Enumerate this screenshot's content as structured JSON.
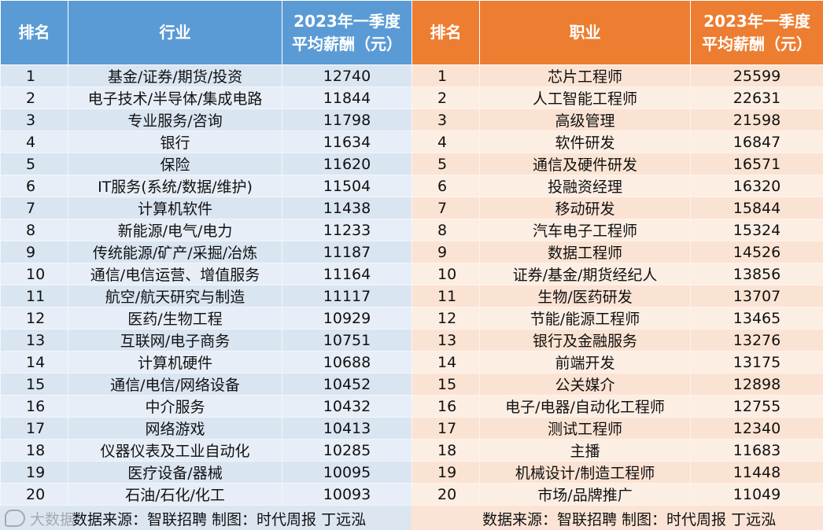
{
  "industry_table": {
    "headers": {
      "rank": "排名",
      "name": "行业",
      "salary_line1": "2023年一季度",
      "salary_line2": "平均薪酬（元）"
    },
    "rows": [
      {
        "rank": "1",
        "name": "基金/证券/期货/投资",
        "salary": "12740"
      },
      {
        "rank": "2",
        "name": "电子技术/半导体/集成电路",
        "salary": "11844"
      },
      {
        "rank": "3",
        "name": "专业服务/咨询",
        "salary": "11798"
      },
      {
        "rank": "4",
        "name": "银行",
        "salary": "11634"
      },
      {
        "rank": "5",
        "name": "保险",
        "salary": "11620"
      },
      {
        "rank": "6",
        "name": "IT服务(系统/数据/维护)",
        "salary": "11504"
      },
      {
        "rank": "7",
        "name": "计算机软件",
        "salary": "11438"
      },
      {
        "rank": "8",
        "name": "新能源/电气/电力",
        "salary": "11233"
      },
      {
        "rank": "9",
        "name": "传统能源/矿产/采掘/冶炼",
        "salary": "11187"
      },
      {
        "rank": "10",
        "name": "通信/电信运营、增值服务",
        "salary": "11164"
      },
      {
        "rank": "11",
        "name": "航空/航天研究与制造",
        "salary": "11117"
      },
      {
        "rank": "12",
        "name": "医药/生物工程",
        "salary": "10929"
      },
      {
        "rank": "13",
        "name": "互联网/电子商务",
        "salary": "10751"
      },
      {
        "rank": "14",
        "name": "计算机硬件",
        "salary": "10688"
      },
      {
        "rank": "15",
        "name": "通信/电信/网络设备",
        "salary": "10452"
      },
      {
        "rank": "16",
        "name": "中介服务",
        "salary": "10432"
      },
      {
        "rank": "17",
        "name": "网络游戏",
        "salary": "10413"
      },
      {
        "rank": "18",
        "name": "仪器仪表及工业自动化",
        "salary": "10285"
      },
      {
        "rank": "19",
        "name": "医疗设备/器械",
        "salary": "10095"
      },
      {
        "rank": "20",
        "name": "石油/石化/化工",
        "salary": "10093"
      }
    ],
    "footer": "数据来源：智联招聘 制图：时代周报 丁远泓"
  },
  "occupation_table": {
    "headers": {
      "rank": "排名",
      "name": "职业",
      "salary_line1": "2023年一季度",
      "salary_line2": "平均薪酬（元）"
    },
    "rows": [
      {
        "rank": "1",
        "name": "芯片工程师",
        "salary": "25599"
      },
      {
        "rank": "2",
        "name": "人工智能工程师",
        "salary": "22631"
      },
      {
        "rank": "3",
        "name": "高级管理",
        "salary": "21598"
      },
      {
        "rank": "4",
        "name": "软件研发",
        "salary": "16847"
      },
      {
        "rank": "5",
        "name": "通信及硬件研发",
        "salary": "16571"
      },
      {
        "rank": "6",
        "name": "投融资经理",
        "salary": "16320"
      },
      {
        "rank": "7",
        "name": "移动研发",
        "salary": "15844"
      },
      {
        "rank": "8",
        "name": "汽车电子工程师",
        "salary": "15324"
      },
      {
        "rank": "9",
        "name": "数据工程师",
        "salary": "14526"
      },
      {
        "rank": "10",
        "name": "证券/基金/期货经纪人",
        "salary": "13856"
      },
      {
        "rank": "11",
        "name": "生物/医药研发",
        "salary": "13707"
      },
      {
        "rank": "12",
        "name": "节能/能源工程师",
        "salary": "13465"
      },
      {
        "rank": "13",
        "name": "银行及金融服务",
        "salary": "13276"
      },
      {
        "rank": "14",
        "name": "前端开发",
        "salary": "13175"
      },
      {
        "rank": "15",
        "name": "公关媒介",
        "salary": "12898"
      },
      {
        "rank": "16",
        "name": "电子/电器/自动化工程师",
        "salary": "12755"
      },
      {
        "rank": "17",
        "name": "测试工程师",
        "salary": "12340"
      },
      {
        "rank": "18",
        "name": "主播",
        "salary": "11683"
      },
      {
        "rank": "19",
        "name": "机械设计/制造工程师",
        "salary": "11448"
      },
      {
        "rank": "20",
        "name": "市场/品牌推广",
        "salary": "11049"
      }
    ],
    "footer": "数据来源：智联招聘 制图：时代周报 丁远泓"
  },
  "watermark": {
    "icon": "dashu-logo-icon",
    "text": "大数据"
  },
  "colors": {
    "left_header": "#5b9bd5",
    "right_header": "#ed7d31",
    "left_body": "#dce6f1",
    "right_body": "#fbe4d5"
  }
}
